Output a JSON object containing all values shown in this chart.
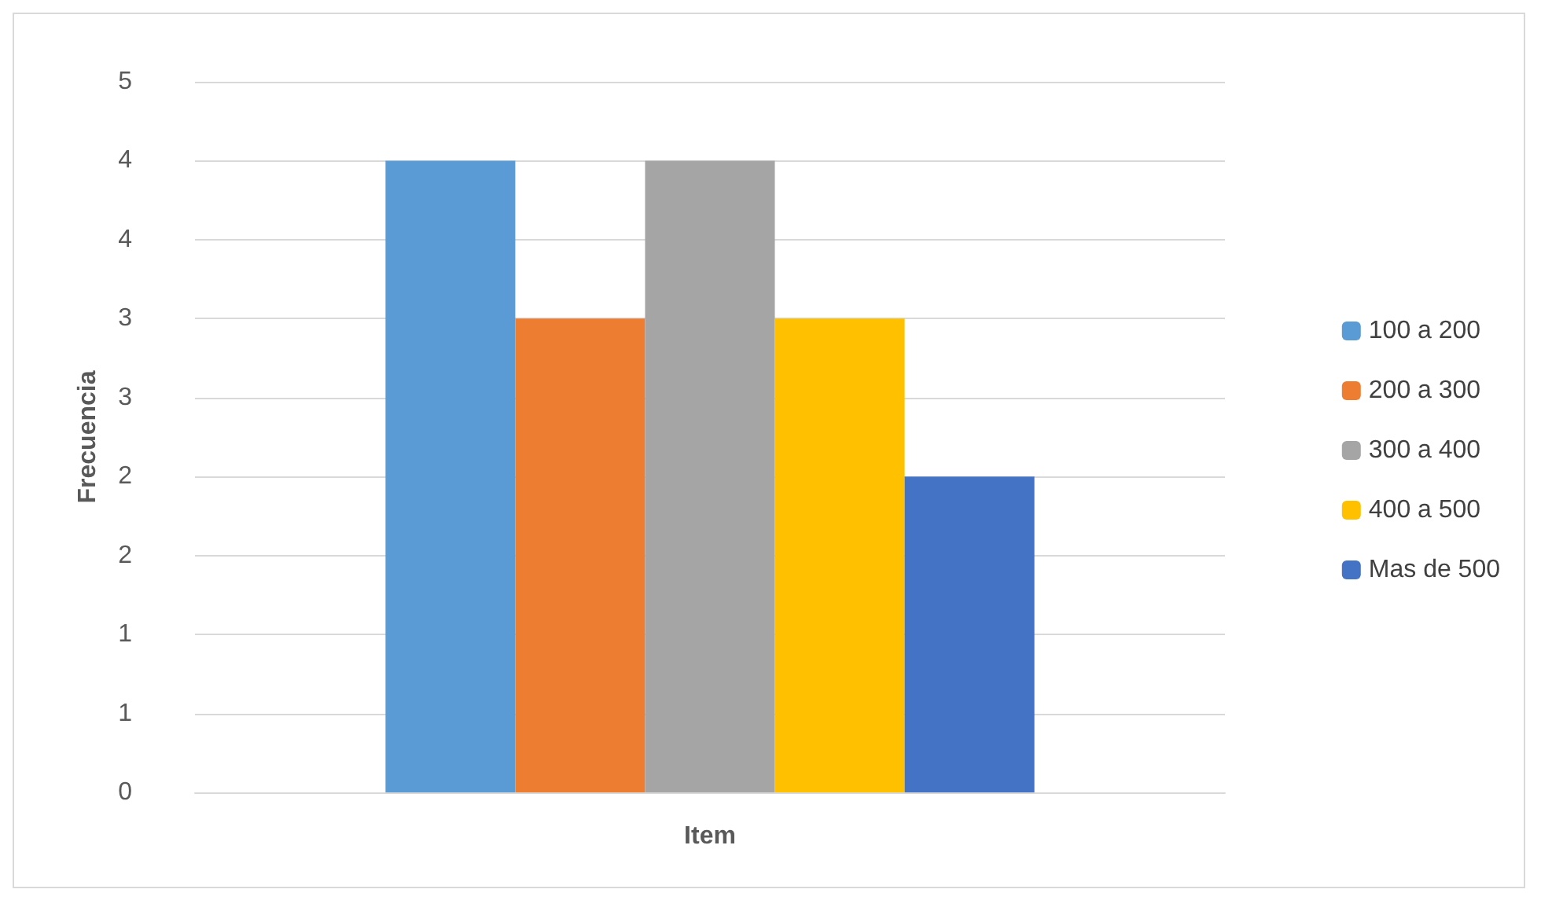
{
  "chart_data": {
    "type": "bar",
    "xlabel": "Item",
    "ylabel": "Frecuencia",
    "categories": [
      null
    ],
    "series": [
      {
        "name": "100 a 200",
        "color": "#5b9bd5",
        "values": [
          4
        ]
      },
      {
        "name": "200 a 300",
        "color": "#ed7d31",
        "values": [
          3
        ]
      },
      {
        "name": "300 a 400",
        "color": "#a5a5a5",
        "values": [
          4
        ]
      },
      {
        "name": "400 a 500",
        "color": "#ffc000",
        "values": [
          3
        ]
      },
      {
        "name": "Mas de 500",
        "color": "#4472c4",
        "values": [
          2
        ]
      }
    ],
    "ylim": [
      0,
      4.5
    ],
    "yticks": [
      0,
      {
        "value": 0.5,
        "label": "1"
      },
      1,
      {
        "value": 1.5,
        "label": "2"
      },
      2,
      {
        "value": 2.5,
        "label": "3"
      },
      3,
      {
        "value": 3.5,
        "label": "4"
      },
      4,
      {
        "value": 4.5,
        "label": "5"
      }
    ],
    "grid": "y",
    "legend": "right"
  }
}
